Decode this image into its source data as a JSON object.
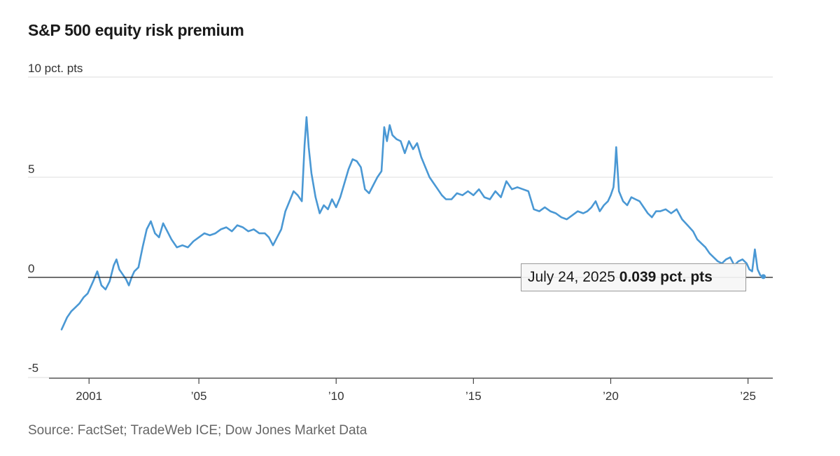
{
  "chart_data": {
    "type": "line",
    "title": "S&P 500 equity risk premium",
    "unit_label": "10 pct. pts",
    "y_tick_labels": [
      "5",
      "0",
      "-5"
    ],
    "ylim": [
      -5,
      10
    ],
    "x_tick_labels": [
      "2001",
      "’05",
      "’10",
      "’15",
      "’20",
      "’25"
    ],
    "x_tick_years": [
      2001,
      2005,
      2010,
      2015,
      2020,
      2025
    ],
    "xlim": [
      2000.0,
      2025.75
    ],
    "grid": "horizontal",
    "line_color": "#4a98d4",
    "series": [
      {
        "values_note_x": "year",
        "x": [
          2000.0,
          2000.1,
          2000.2,
          2000.35,
          2000.5,
          2000.65,
          2000.8,
          2000.95,
          2001.05,
          2001.15,
          2001.3,
          2001.45,
          2001.6,
          2001.75,
          2001.9,
          2002.0,
          2002.1,
          2002.2,
          2002.35,
          2002.45,
          2002.55,
          2002.65,
          2002.8,
          2002.95,
          2003.1,
          2003.25,
          2003.4,
          2003.55,
          2003.7,
          2003.85,
          2004.0,
          2004.2,
          2004.4,
          2004.6,
          2004.8,
          2005.0,
          2005.2,
          2005.4,
          2005.6,
          2005.8,
          2006.0,
          2006.2,
          2006.4,
          2006.6,
          2006.8,
          2007.0,
          2007.2,
          2007.4,
          2007.55,
          2007.7,
          2007.85,
          2008.0,
          2008.15,
          2008.3,
          2008.45,
          2008.6,
          2008.75,
          2008.85,
          2008.92,
          2009.0,
          2009.1,
          2009.25,
          2009.4,
          2009.55,
          2009.7,
          2009.85,
          2010.0,
          2010.15,
          2010.3,
          2010.45,
          2010.6,
          2010.75,
          2010.9,
          2011.05,
          2011.2,
          2011.35,
          2011.5,
          2011.65,
          2011.75,
          2011.85,
          2011.95,
          2012.05,
          2012.2,
          2012.35,
          2012.5,
          2012.65,
          2012.8,
          2012.95,
          2013.1,
          2013.25,
          2013.4,
          2013.55,
          2013.7,
          2013.85,
          2014.0,
          2014.2,
          2014.4,
          2014.6,
          2014.8,
          2015.0,
          2015.2,
          2015.4,
          2015.6,
          2015.8,
          2016.0,
          2016.2,
          2016.4,
          2016.6,
          2016.8,
          2017.0,
          2017.2,
          2017.4,
          2017.6,
          2017.8,
          2018.0,
          2018.2,
          2018.4,
          2018.6,
          2018.8,
          2019.0,
          2019.15,
          2019.3,
          2019.45,
          2019.6,
          2019.75,
          2019.9,
          2020.0,
          2020.1,
          2020.15,
          2020.2,
          2020.3,
          2020.45,
          2020.6,
          2020.75,
          2020.9,
          2021.05,
          2021.2,
          2021.35,
          2021.5,
          2021.65,
          2021.8,
          2022.0,
          2022.2,
          2022.4,
          2022.6,
          2022.8,
          2023.0,
          2023.15,
          2023.3,
          2023.45,
          2023.6,
          2023.75,
          2023.9,
          2024.05,
          2024.2,
          2024.35,
          2024.5,
          2024.65,
          2024.8,
          2024.95,
          2025.05,
          2025.15,
          2025.25,
          2025.35,
          2025.45,
          2025.56
        ],
        "values": [
          -2.6,
          -2.3,
          -2.0,
          -1.7,
          -1.5,
          -1.3,
          -1.0,
          -0.8,
          -0.5,
          -0.2,
          0.3,
          -0.4,
          -0.6,
          -0.2,
          0.6,
          0.9,
          0.4,
          0.2,
          -0.1,
          -0.4,
          0.0,
          0.3,
          0.5,
          1.5,
          2.4,
          2.8,
          2.2,
          2.0,
          2.7,
          2.3,
          1.9,
          1.5,
          1.6,
          1.5,
          1.8,
          2.0,
          2.2,
          2.1,
          2.2,
          2.4,
          2.5,
          2.3,
          2.6,
          2.5,
          2.3,
          2.4,
          2.2,
          2.2,
          2.0,
          1.6,
          2.0,
          2.4,
          3.3,
          3.8,
          4.3,
          4.1,
          3.8,
          6.6,
          8.0,
          6.5,
          5.2,
          4.0,
          3.2,
          3.6,
          3.4,
          3.9,
          3.5,
          4.0,
          4.7,
          5.4,
          5.9,
          5.8,
          5.5,
          4.4,
          4.2,
          4.6,
          5.0,
          5.3,
          7.5,
          6.8,
          7.6,
          7.1,
          6.9,
          6.8,
          6.2,
          6.8,
          6.4,
          6.7,
          6.0,
          5.5,
          5.0,
          4.7,
          4.4,
          4.1,
          3.9,
          3.9,
          4.2,
          4.1,
          4.3,
          4.1,
          4.4,
          4.0,
          3.9,
          4.3,
          4.0,
          4.8,
          4.4,
          4.5,
          4.4,
          4.3,
          3.4,
          3.3,
          3.5,
          3.3,
          3.2,
          3.0,
          2.9,
          3.1,
          3.3,
          3.2,
          3.3,
          3.5,
          3.8,
          3.3,
          3.6,
          3.8,
          4.1,
          4.5,
          5.3,
          6.5,
          4.3,
          3.8,
          3.6,
          4.0,
          3.9,
          3.8,
          3.5,
          3.2,
          3.0,
          3.3,
          3.3,
          3.4,
          3.2,
          3.4,
          2.9,
          2.6,
          2.3,
          1.9,
          1.7,
          1.5,
          1.2,
          1.0,
          0.8,
          0.7,
          0.9,
          1.0,
          0.6,
          0.8,
          0.9,
          0.7,
          0.4,
          0.3,
          1.4,
          0.4,
          0.1,
          0.039
        ]
      }
    ],
    "callout": {
      "date_text": "July 24, 2025",
      "value_text": "0.039 pct. pts",
      "x": 2025.56,
      "y": 0.039
    }
  },
  "source": "Source: FactSet; TradeWeb ICE; Dow Jones Market Data"
}
